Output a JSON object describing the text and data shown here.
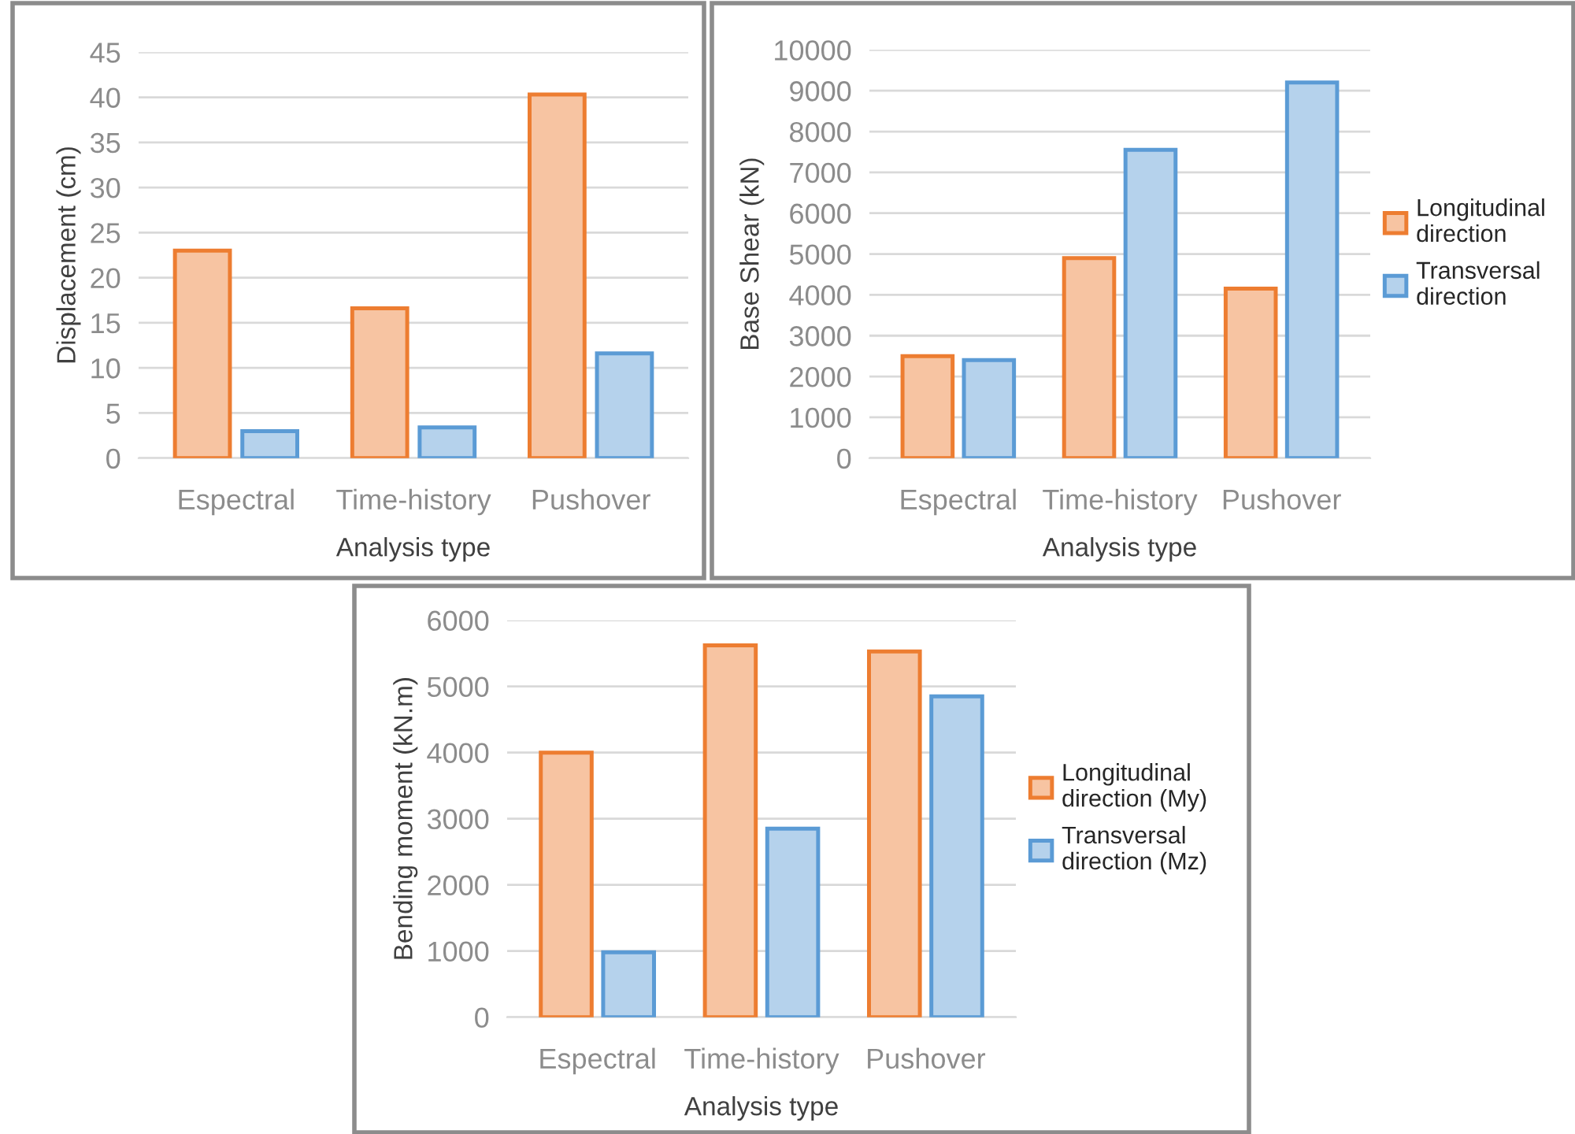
{
  "chart_data": [
    {
      "type": "bar",
      "xlabel": "Analysis type",
      "ylabel": "Displacement (cm)",
      "categories": [
        "Espectral",
        "Time-history",
        "Pushover"
      ],
      "series": [
        {
          "color": "#ed7d31",
          "values": [
            23,
            16.6,
            40.3
          ]
        },
        {
          "color": "#5b9bd5",
          "values": [
            3.0,
            3.4,
            11.6
          ]
        }
      ],
      "ylim": [
        0,
        45
      ],
      "yticks": [
        0,
        5,
        10,
        15,
        20,
        25,
        30,
        35,
        40,
        45
      ],
      "grid": "y",
      "legend": false
    },
    {
      "type": "bar",
      "xlabel": "Analysis type",
      "ylabel": "Base Shear (kN)",
      "categories": [
        "Espectral",
        "Time-history",
        "Pushover"
      ],
      "series": [
        {
          "name": "Longitudinal direction",
          "color": "#ed7d31",
          "values": [
            2500,
            4900,
            4150
          ]
        },
        {
          "name": "Transversal direction",
          "color": "#5b9bd5",
          "values": [
            2400,
            7550,
            9200
          ]
        }
      ],
      "ylim": [
        0,
        10000
      ],
      "yticks": [
        0,
        1000,
        2000,
        3000,
        4000,
        5000,
        6000,
        7000,
        8000,
        9000,
        10000
      ],
      "grid": "y",
      "legend": "right"
    },
    {
      "type": "bar",
      "xlabel": "Analysis type",
      "ylabel": "Bending moment (kN.m)",
      "categories": [
        "Espectral",
        "Time-history",
        "Pushover"
      ],
      "series": [
        {
          "name": "Longitudinal direction (My)",
          "color": "#ed7d31",
          "values": [
            4000,
            5620,
            5530
          ]
        },
        {
          "name": "Transversal direction (Mz)",
          "color": "#5b9bd5",
          "values": [
            980,
            2850,
            4850
          ]
        }
      ],
      "ylim": [
        0,
        6000
      ],
      "yticks": [
        0,
        1000,
        2000,
        3000,
        4000,
        5000,
        6000
      ],
      "grid": "y",
      "legend": "right"
    }
  ]
}
